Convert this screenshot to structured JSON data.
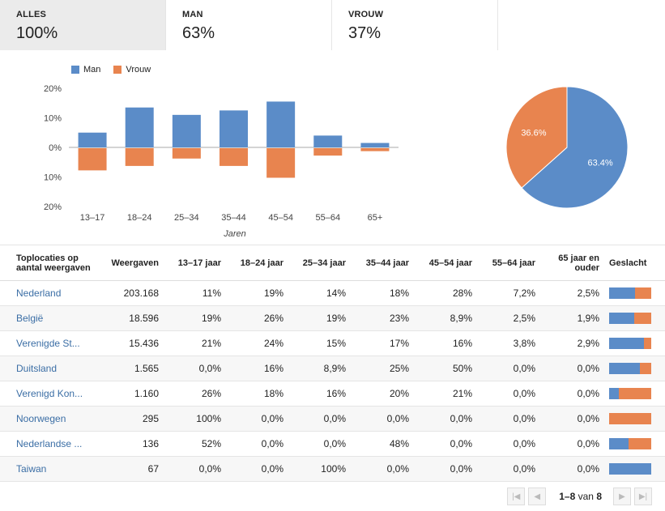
{
  "tabs": [
    {
      "label": "ALLES",
      "value": "100%",
      "active": true
    },
    {
      "label": "MAN",
      "value": "63%",
      "active": false
    },
    {
      "label": "VROUW",
      "value": "37%",
      "active": false
    }
  ],
  "colors": {
    "man": "#5b8cc8",
    "vrouw": "#e8844f"
  },
  "chart_data": [
    {
      "type": "bar",
      "title": "",
      "xlabel": "Jaren",
      "ylabel": "",
      "categories": [
        "13–17",
        "18–24",
        "25–34",
        "35–44",
        "45–54",
        "55–64",
        "65+"
      ],
      "series": [
        {
          "name": "Man",
          "values": [
            5,
            13.5,
            11,
            12.5,
            15.5,
            4,
            1.5
          ]
        },
        {
          "name": "Vrouw",
          "values": [
            -7.5,
            -6,
            -3.5,
            -6,
            -10,
            -2.5,
            -1
          ]
        }
      ],
      "ylim": [
        -20,
        20
      ],
      "yticks": [
        "20%",
        "10%",
        "0%",
        "10%",
        "20%"
      ],
      "legend": "top-left",
      "grid": false
    },
    {
      "type": "pie",
      "title": "",
      "series": [
        {
          "name": "Man",
          "value": 63.4,
          "label": "63.4%"
        },
        {
          "name": "Vrouw",
          "value": 36.6,
          "label": "36.6%"
        }
      ]
    }
  ],
  "table": {
    "headers": [
      "Toplocaties op aantal weergaven",
      "Weergaven",
      "13–17 jaar",
      "18–24 jaar",
      "25–34 jaar",
      "35–44 jaar",
      "45–54 jaar",
      "55–64 jaar",
      "65 jaar en ouder",
      "Geslacht"
    ],
    "rows": [
      {
        "loc": "Nederland",
        "views": "203.168",
        "v": [
          "11%",
          "19%",
          "14%",
          "18%",
          "28%",
          "7,2%",
          "2,5%"
        ],
        "man": 0.62
      },
      {
        "loc": "België",
        "views": "18.596",
        "v": [
          "19%",
          "26%",
          "19%",
          "23%",
          "8,9%",
          "2,5%",
          "1,9%"
        ],
        "man": 0.6
      },
      {
        "loc": "Verenigde St...",
        "views": "15.436",
        "v": [
          "21%",
          "24%",
          "15%",
          "17%",
          "16%",
          "3,8%",
          "2,9%"
        ],
        "man": 0.82
      },
      {
        "loc": "Duitsland",
        "views": "1.565",
        "v": [
          "0,0%",
          "16%",
          "8,9%",
          "25%",
          "50%",
          "0,0%",
          "0,0%"
        ],
        "man": 0.73
      },
      {
        "loc": "Verenigd Kon...",
        "views": "1.160",
        "v": [
          "26%",
          "18%",
          "16%",
          "20%",
          "21%",
          "0,0%",
          "0,0%"
        ],
        "man": 0.23
      },
      {
        "loc": "Noorwegen",
        "views": "295",
        "v": [
          "100%",
          "0,0%",
          "0,0%",
          "0,0%",
          "0,0%",
          "0,0%",
          "0,0%"
        ],
        "man": 0.0
      },
      {
        "loc": "Nederlandse ...",
        "views": "136",
        "v": [
          "52%",
          "0,0%",
          "0,0%",
          "48%",
          "0,0%",
          "0,0%",
          "0,0%"
        ],
        "man": 0.46
      },
      {
        "loc": "Taiwan",
        "views": "67",
        "v": [
          "0,0%",
          "0,0%",
          "100%",
          "0,0%",
          "0,0%",
          "0,0%",
          "0,0%"
        ],
        "man": 1.0
      }
    ]
  },
  "pager": {
    "range": "1–8",
    "of_label": "van",
    "total": "8"
  }
}
